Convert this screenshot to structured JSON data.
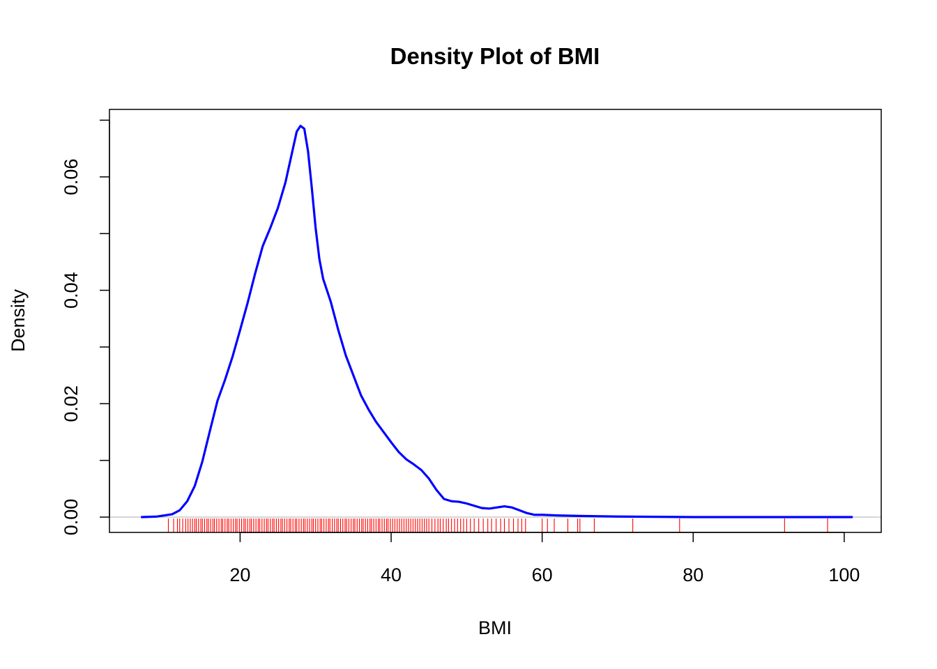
{
  "chart_data": {
    "type": "line",
    "title": "Density Plot of BMI",
    "xlabel": "BMI",
    "ylabel": "Density",
    "xlim": [
      2.7,
      104.9
    ],
    "ylim": [
      -0.0027,
      0.0719
    ],
    "x_ticks": [
      20,
      40,
      60,
      80,
      100
    ],
    "x_tick_labels": [
      "20",
      "40",
      "60",
      "80",
      "100"
    ],
    "y_ticks": [
      0.0,
      0.01,
      0.02,
      0.03,
      0.04,
      0.05,
      0.06,
      0.07
    ],
    "y_tick_labels": [
      "0.00",
      "",
      "0.02",
      "",
      "0.04",
      "",
      "0.06",
      ""
    ],
    "grid": false,
    "colors": {
      "density": "#0000ff",
      "rug": "#ff0000",
      "zero_line": "#bebebe",
      "axes": "#000000"
    },
    "series": [
      {
        "x": [
          7.0,
          9.0,
          11.0,
          12.0,
          13.0,
          14.0,
          15.0,
          16.0,
          17.0,
          18.0,
          19.0,
          20.0,
          21.0,
          22.0,
          23.0,
          24.0,
          25.0,
          26.0,
          27.0,
          27.5,
          28.0,
          28.5,
          29.0,
          29.5,
          30.0,
          30.5,
          31.0,
          32.0,
          33.0,
          34.0,
          35.0,
          36.0,
          37.0,
          38.0,
          39.0,
          40.0,
          41.0,
          42.0,
          43.0,
          44.0,
          45.0,
          46.0,
          47.0,
          48.0,
          49.0,
          50.0,
          51.0,
          52.0,
          53.0,
          54.0,
          55.0,
          56.0,
          57.0,
          58.0,
          59.0,
          60.0,
          62.0,
          65.0,
          70.0,
          80.0,
          90.0,
          101.0
        ],
        "y": [
          0.0,
          0.0001,
          0.0005,
          0.0012,
          0.0028,
          0.0055,
          0.0098,
          0.0152,
          0.0205,
          0.0242,
          0.0283,
          0.033,
          0.0378,
          0.043,
          0.0478,
          0.051,
          0.0545,
          0.059,
          0.065,
          0.068,
          0.069,
          0.0685,
          0.0645,
          0.058,
          0.051,
          0.0455,
          0.042,
          0.038,
          0.033,
          0.0285,
          0.025,
          0.0215,
          0.019,
          0.0168,
          0.015,
          0.0132,
          0.0115,
          0.0102,
          0.0093,
          0.0083,
          0.0068,
          0.0048,
          0.0032,
          0.0028,
          0.0027,
          0.0024,
          0.002,
          0.0016,
          0.0015,
          0.0017,
          0.0019,
          0.0017,
          0.0012,
          0.0007,
          0.0004,
          0.0004,
          0.0003,
          0.0002,
          0.0001,
          0.0,
          0.0,
          0.0
        ]
      }
    ],
    "rug": [
      10.5,
      11.2,
      11.7,
      12.0,
      12.4,
      12.8,
      13.1,
      13.4,
      13.7,
      14.0,
      14.2,
      14.5,
      14.8,
      15.0,
      15.3,
      15.6,
      15.8,
      16.1,
      16.4,
      16.6,
      16.9,
      17.2,
      17.5,
      17.7,
      18.0,
      18.3,
      18.5,
      18.8,
      19.1,
      19.4,
      19.6,
      19.9,
      20.2,
      20.5,
      20.7,
      21.0,
      21.3,
      21.5,
      21.8,
      22.1,
      22.4,
      22.6,
      22.9,
      23.2,
      23.5,
      23.7,
      24.0,
      24.3,
      24.5,
      24.8,
      25.1,
      25.4,
      25.6,
      25.9,
      26.2,
      26.5,
      26.7,
      27.0,
      27.3,
      27.5,
      27.8,
      28.1,
      28.4,
      28.6,
      28.9,
      29.2,
      29.5,
      29.7,
      30.0,
      30.3,
      30.6,
      30.8,
      31.1,
      31.4,
      31.7,
      31.9,
      32.2,
      32.5,
      32.8,
      33.0,
      33.3,
      33.6,
      33.9,
      34.1,
      34.4,
      34.7,
      35.0,
      35.2,
      35.5,
      35.8,
      36.1,
      36.3,
      36.6,
      36.9,
      37.2,
      37.4,
      37.7,
      38.0,
      38.3,
      38.5,
      38.8,
      39.1,
      39.4,
      39.6,
      39.9,
      40.2,
      40.5,
      40.8,
      41.1,
      41.4,
      41.7,
      42.0,
      42.3,
      42.6,
      42.9,
      43.2,
      43.5,
      43.8,
      44.1,
      44.4,
      44.7,
      45.0,
      45.4,
      45.8,
      46.2,
      46.5,
      46.9,
      47.3,
      47.6,
      48.0,
      48.4,
      48.8,
      49.2,
      49.6,
      50.0,
      50.5,
      51.0,
      51.6,
      52.2,
      52.8,
      53.3,
      53.9,
      54.5,
      55.0,
      55.6,
      56.2,
      56.8,
      57.3,
      57.8,
      60.0,
      60.7,
      61.6,
      63.4,
      64.7,
      65.0,
      66.9,
      72.0,
      78.2,
      92.1,
      97.8
    ]
  }
}
